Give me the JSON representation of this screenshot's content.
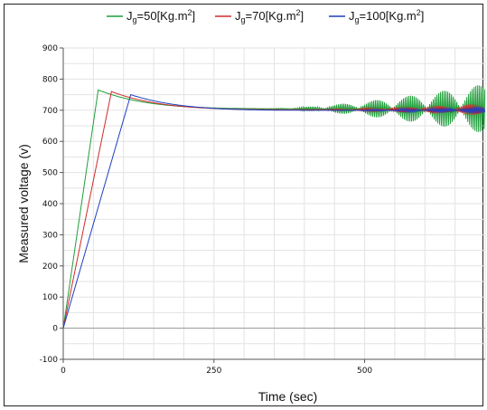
{
  "chart_data": {
    "type": "line",
    "xlabel": "Time (sec)",
    "ylabel": "Measured voltage (v)",
    "xlim": [
      0,
      700
    ],
    "ylim": [
      -100,
      900
    ],
    "x_ticks": [
      0,
      250,
      500
    ],
    "y_ticks": [
      -100,
      0,
      100,
      200,
      300,
      400,
      500,
      600,
      700,
      800,
      900
    ],
    "grid": true,
    "legend_position": "top",
    "series": [
      {
        "name": "Jg=50[Kg.m2]",
        "legend_base": "J",
        "legend_sub": "g",
        "legend_mid": "=50[Kg.m",
        "legend_sup": "2",
        "legend_end": "]",
        "color": "#1f9e3a",
        "ramp_end_time": 58,
        "peak": 765,
        "oscillation_start": 330,
        "oscillation_amp_end": 150,
        "final_value": 705
      },
      {
        "name": "Jg=70[Kg.m2]",
        "legend_base": "J",
        "legend_sub": "g",
        "legend_mid": "=70[Kg.m",
        "legend_sup": "2",
        "legend_end": "]",
        "color": "#d22a2a",
        "ramp_end_time": 80,
        "peak": 760,
        "oscillation_start": 380,
        "oscillation_amp_end": 30,
        "final_value": 702
      },
      {
        "name": "Jg=100[Kg.m2]",
        "legend_base": "J",
        "legend_sub": "g",
        "legend_mid": "=100[Kg.m",
        "legend_sup": "2",
        "legend_end": "]",
        "color": "#1f3fbf",
        "ramp_end_time": 112,
        "peak": 750,
        "oscillation_start": 420,
        "oscillation_amp_end": 15,
        "final_value": 700
      }
    ]
  }
}
